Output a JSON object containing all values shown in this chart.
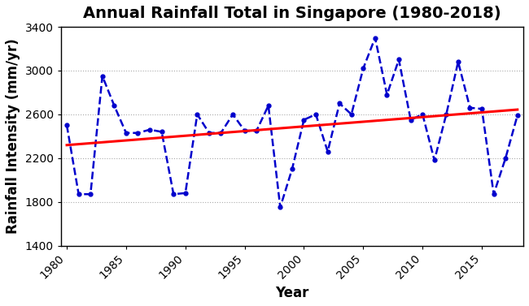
{
  "title": "Annual Rainfall Total in Singapore (1980-2018)",
  "xlabel": "Year",
  "ylabel": "Rainfall Intensity (mm/yr)",
  "years": [
    1980,
    1981,
    1982,
    1983,
    1984,
    1985,
    1986,
    1987,
    1988,
    1989,
    1990,
    1991,
    1992,
    1993,
    1994,
    1995,
    1996,
    1997,
    1998,
    1999,
    2000,
    2001,
    2002,
    2003,
    2004,
    2005,
    2006,
    2007,
    2008,
    2009,
    2010,
    2011,
    2012,
    2013,
    2014,
    2015,
    2016,
    2017,
    2018
  ],
  "rainfall": [
    2500,
    1870,
    1870,
    2950,
    2680,
    2430,
    2430,
    2460,
    2440,
    1870,
    1880,
    2600,
    2430,
    2430,
    2600,
    2450,
    2450,
    2680,
    1750,
    2100,
    2550,
    2600,
    2260,
    2700,
    2600,
    3020,
    3300,
    2780,
    3100,
    2550,
    2600,
    2180,
    2600,
    3080,
    2660,
    2650,
    1870,
    2200,
    2590
  ],
  "line_color": "#0000CC",
  "trend_color": "#FF0000",
  "ylim": [
    1400,
    3400
  ],
  "yticks": [
    1400,
    1800,
    2200,
    2600,
    3000,
    3400
  ],
  "xlim": [
    1979.5,
    2018.5
  ],
  "xticks": [
    1980,
    1985,
    1990,
    1995,
    2000,
    2005,
    2010,
    2015
  ],
  "grid_color": "#aaaaaa",
  "background_color": "#ffffff",
  "title_fontsize": 14,
  "label_fontsize": 12,
  "tick_fontsize": 10
}
